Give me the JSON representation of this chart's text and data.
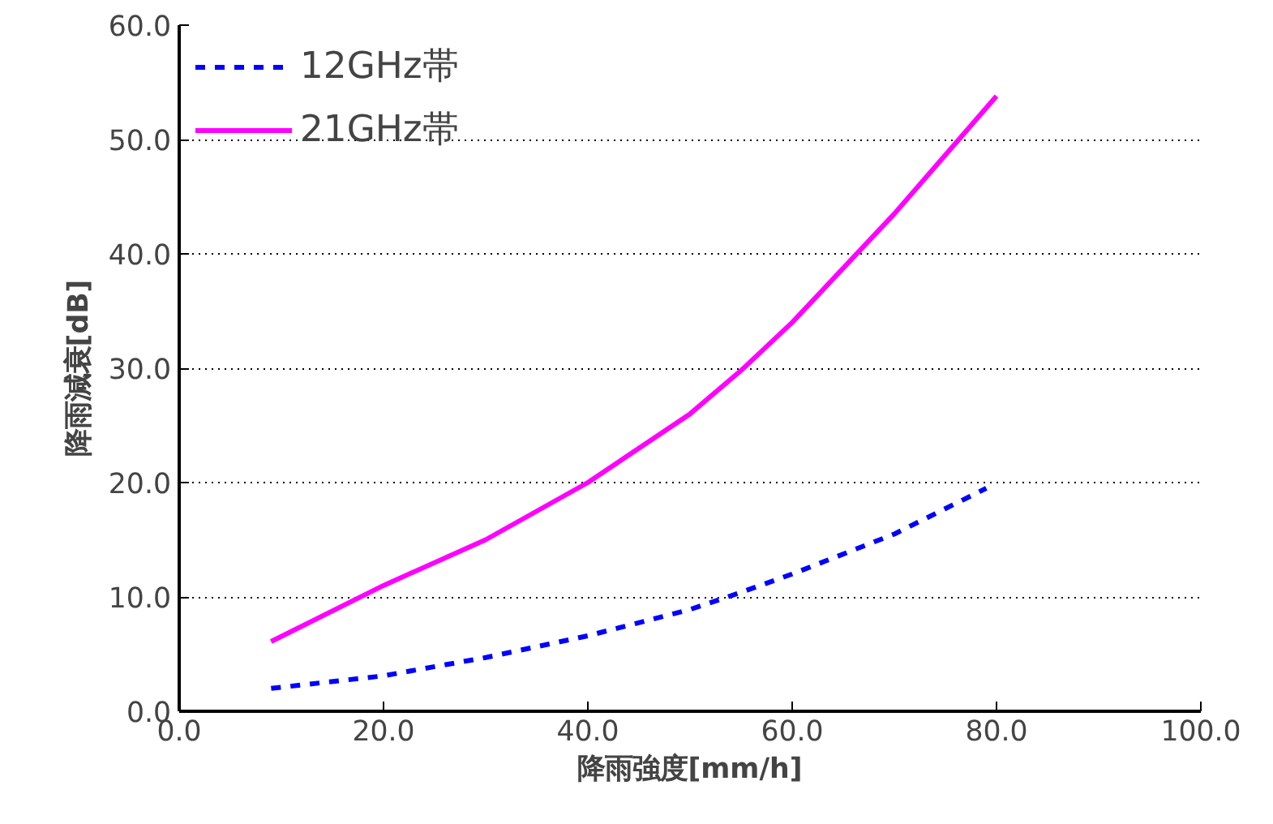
{
  "chart_data": {
    "type": "line",
    "xlabel": "降雨強度[mm/h]",
    "ylabel": "降雨減衰[dB]",
    "xlim": [
      0,
      100
    ],
    "ylim": [
      0,
      60
    ],
    "xticks": [
      {
        "value": 0,
        "label": "0.0"
      },
      {
        "value": 20,
        "label": "20.0"
      },
      {
        "value": 40,
        "label": "40.0"
      },
      {
        "value": 60,
        "label": "60.0"
      },
      {
        "value": 80,
        "label": "80.0"
      },
      {
        "value": 100,
        "label": "100.0"
      }
    ],
    "yticks": [
      {
        "value": 0,
        "label": "0.0"
      },
      {
        "value": 10,
        "label": "10.0"
      },
      {
        "value": 20,
        "label": "20.0"
      },
      {
        "value": 30,
        "label": "30.0"
      },
      {
        "value": 40,
        "label": "40.0"
      },
      {
        "value": 50,
        "label": "50.0"
      },
      {
        "value": 60,
        "label": "60.0"
      }
    ],
    "grid": "y",
    "legend": "top left",
    "series": [
      {
        "name": "12GHz帯",
        "color": "#0000ff",
        "line_style": "dashed",
        "x": [
          9,
          20,
          30,
          40,
          50,
          55,
          60,
          70,
          79
        ],
        "values": [
          2.0,
          3.1,
          4.7,
          6.6,
          8.9,
          10.4,
          12.0,
          15.5,
          19.5
        ]
      },
      {
        "name": "21GHz帯",
        "color": "#ff00ff",
        "line_style": "solid",
        "x": [
          9,
          20,
          30,
          40,
          50,
          55,
          60,
          70,
          80
        ],
        "values": [
          6.1,
          11.0,
          15.0,
          20.0,
          26.0,
          29.8,
          34.0,
          43.5,
          53.8
        ]
      }
    ]
  }
}
